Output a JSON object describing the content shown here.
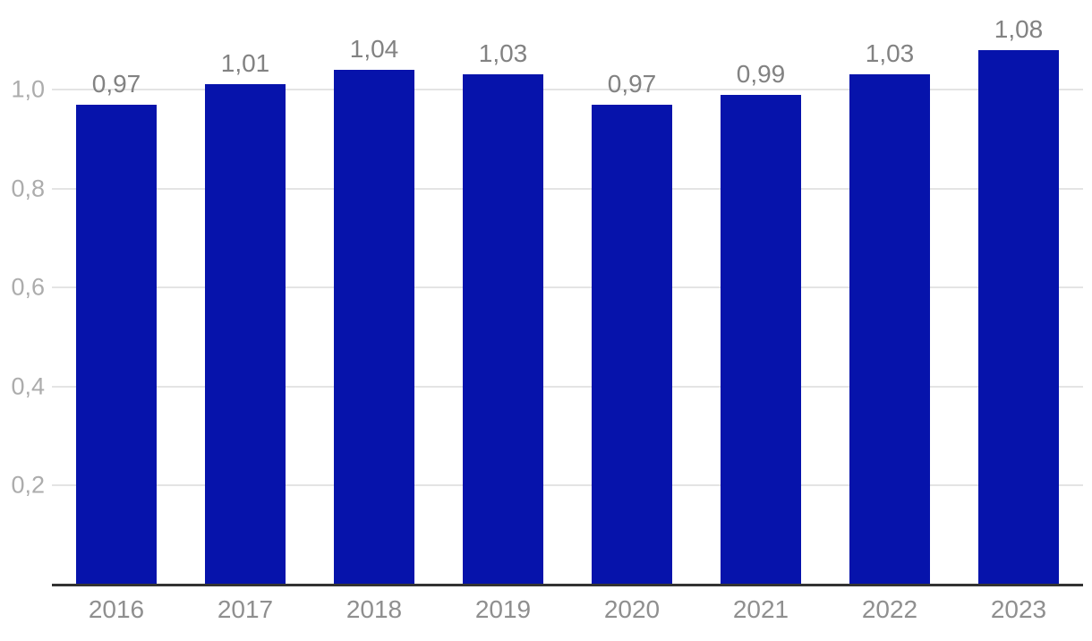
{
  "chart_data": {
    "type": "bar",
    "title": "",
    "xlabel": "",
    "ylabel": "",
    "categories": [
      "2016",
      "2017",
      "2018",
      "2019",
      "2020",
      "2021",
      "2022",
      "2023"
    ],
    "values": [
      0.97,
      1.01,
      1.04,
      1.03,
      0.97,
      0.99,
      1.03,
      1.08
    ],
    "value_labels": [
      "0,97",
      "1,01",
      "1,04",
      "1,03",
      "0,97",
      "0,99",
      "1,03",
      "1,08"
    ],
    "decimal_separator": ",",
    "yticks": [
      {
        "value": 0.2,
        "label": "0,2"
      },
      {
        "value": 0.4,
        "label": "0,4"
      },
      {
        "value": 0.6,
        "label": "0,6"
      },
      {
        "value": 0.8,
        "label": "0,8"
      },
      {
        "value": 1.0,
        "label": "1,0"
      }
    ],
    "ylim": [
      0,
      1.1
    ],
    "grid": "horizontal",
    "legend": "none",
    "colors": {
      "bar": "#0613AB",
      "gridline": "#E4E4E4",
      "axis_line": "#333333",
      "value_label": "#828282",
      "x_tick_label": "#8F8F8F",
      "y_tick_label": "#ACACAC",
      "background": "#FFFFFF"
    }
  }
}
